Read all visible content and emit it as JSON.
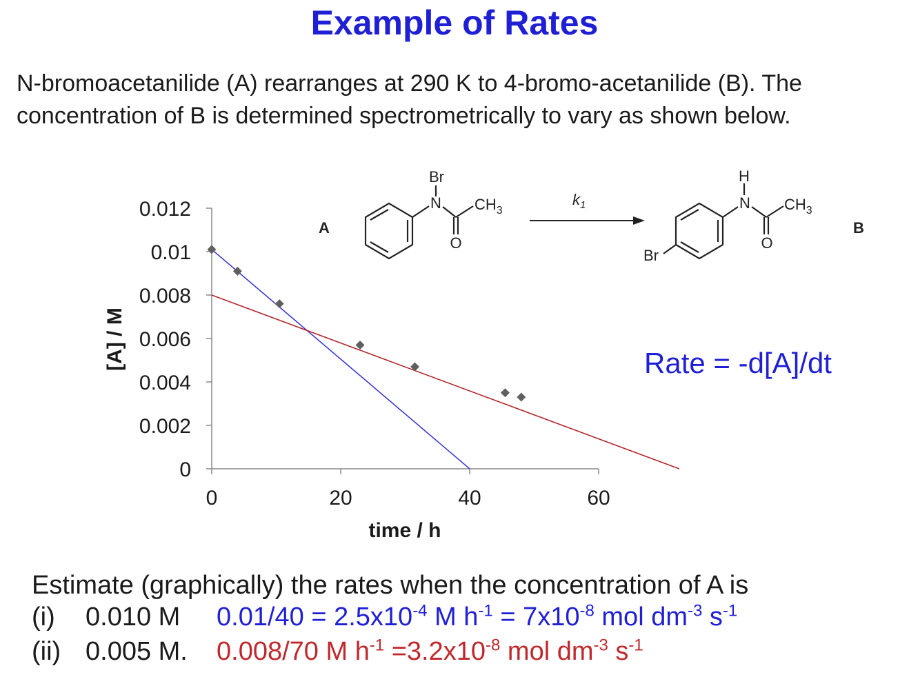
{
  "title": "Example of Rates",
  "intro": "N-bromoacetanilide (A) rearranges at 290 K to 4-bromo-acetanilide (B). The concentration of B is determined spectrometrically to vary as shown below.",
  "reaction": {
    "label_a": "A",
    "label_b": "B",
    "rate_constant": "k",
    "rate_constant_sub": "1",
    "atom_br": "Br",
    "atom_n": "N",
    "atom_h": "H",
    "atom_o": "O",
    "group_ch": "CH",
    "group_sub": "3"
  },
  "rate_equation": "Rate = -d[A]/dt",
  "question": {
    "prompt": "Estimate (graphically) the rates when the concentration of A is",
    "items": [
      {
        "num": "(i)",
        "value": "0.010 M",
        "answer": [
          "0.01/40 = 2.5x10",
          "-4",
          " M h",
          "-1",
          " = 7x10",
          "-8",
          " mol dm",
          "-3",
          " s",
          "-1"
        ]
      },
      {
        "num": "(ii)",
        "value": "0.005 M.",
        "answer": [
          "0.008/70 M h",
          "-1",
          " =",
          "",
          "3.2x10",
          "-8",
          " mol dm",
          "-3",
          " s",
          "-1"
        ]
      }
    ]
  },
  "colors": {
    "title": "#1f1fd6",
    "tangent_1": "#3a3ad6",
    "tangent_2": "#b3262a",
    "points": "#606060",
    "answer_1": "#1f1fd6",
    "answer_2": "#c0282c"
  },
  "chart_data": {
    "type": "scatter",
    "xlabel": "time / h",
    "ylabel": "[A] / M",
    "xlim": [
      0,
      60
    ],
    "ylim": [
      0,
      0.012
    ],
    "x_ticks": [
      0,
      20,
      40,
      60
    ],
    "x_tick_labels": [
      "0",
      "20",
      "40",
      "60"
    ],
    "y_ticks": [
      0,
      0.002,
      0.004,
      0.006,
      0.008,
      0.01,
      0.012
    ],
    "y_tick_labels": [
      "0",
      "0.002",
      "0.004",
      "0.006",
      "0.008",
      "0.01",
      "0.012"
    ],
    "grid": false,
    "points": [
      {
        "x": 0,
        "y": 0.0101
      },
      {
        "x": 4,
        "y": 0.0091
      },
      {
        "x": 10.5,
        "y": 0.0076
      },
      {
        "x": 23,
        "y": 0.0057
      },
      {
        "x": 31.5,
        "y": 0.0047
      },
      {
        "x": 45.5,
        "y": 0.0035
      },
      {
        "x": 48,
        "y": 0.0033
      }
    ],
    "tangent_lines": [
      {
        "x": [
          0,
          40
        ],
        "y": [
          0.0101,
          0
        ]
      },
      {
        "x": [
          0,
          72.5
        ],
        "y": [
          0.008,
          0
        ]
      }
    ]
  }
}
